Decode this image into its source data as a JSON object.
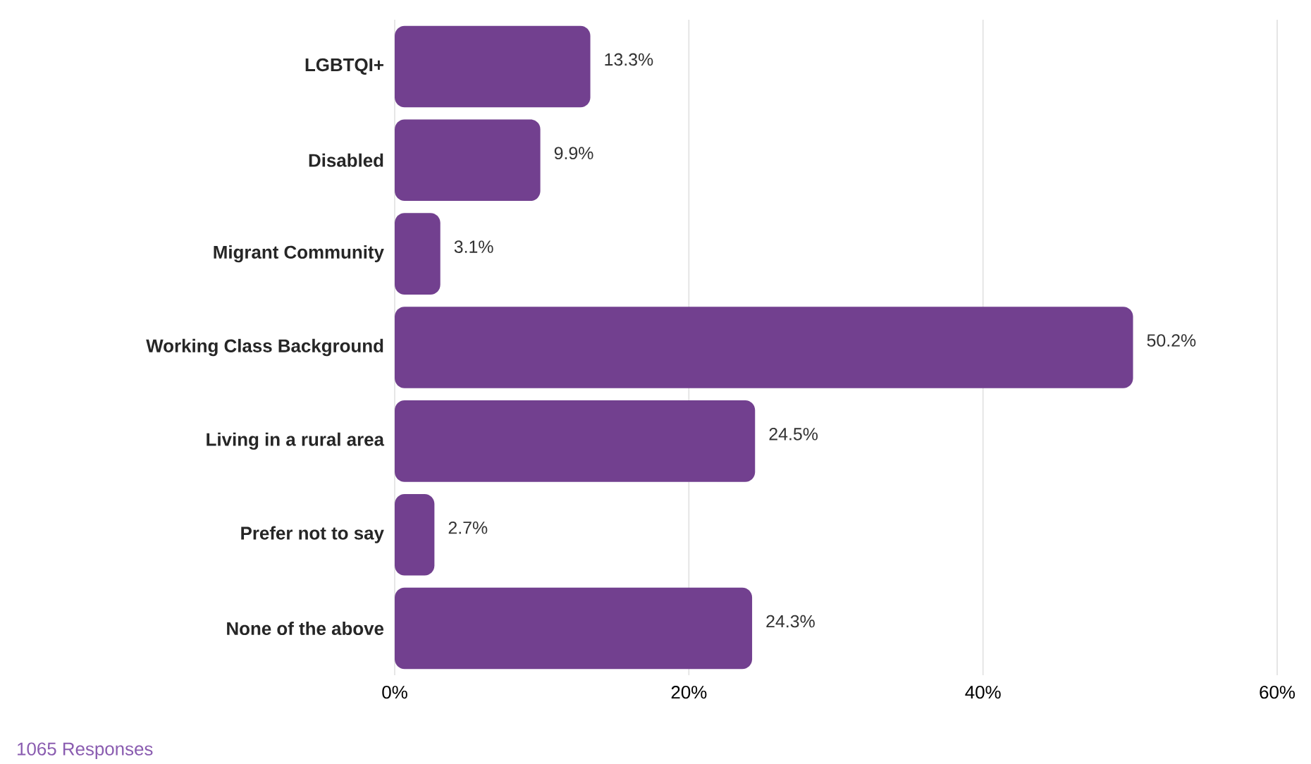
{
  "chart_data": {
    "type": "bar",
    "orientation": "horizontal",
    "categories": [
      "LGBTQI+",
      "Disabled",
      "Migrant Community",
      "Working Class Background",
      "Living in a rural area",
      "Prefer not to say",
      "None of the above"
    ],
    "values": [
      13.3,
      9.9,
      3.1,
      50.2,
      24.5,
      2.7,
      24.3
    ],
    "value_labels": [
      "13.3%",
      "9.9%",
      "3.1%",
      "50.2%",
      "24.5%",
      "2.7%",
      "24.3%"
    ],
    "color": "#72408f",
    "xlim": [
      0,
      60
    ],
    "xticks": [
      {
        "value": 0,
        "label": "0%"
      },
      {
        "value": 20,
        "label": "20%"
      },
      {
        "value": 40,
        "label": "40%"
      },
      {
        "value": 60,
        "label": "60%"
      }
    ],
    "grid": "x",
    "annotations": [
      "1065 Responses"
    ]
  }
}
